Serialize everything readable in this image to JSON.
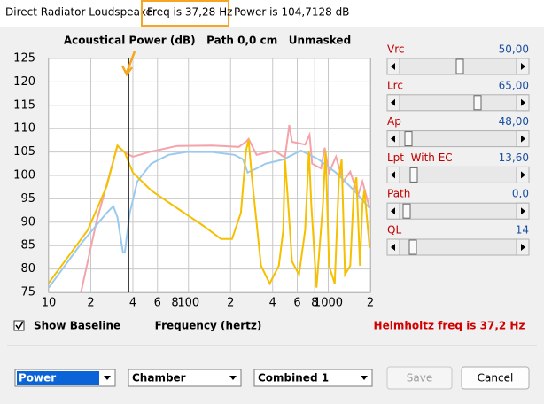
{
  "window": {
    "title": "Direct Radiator Loudspeaker",
    "status_freq": "Freq is 37,28 Hz",
    "status_power": "Power is 104,7128 dB"
  },
  "chart_data": {
    "type": "line",
    "title": "Acoustical Power (dB)   Path 0,0 cm   Unmasked",
    "x_label": "Frequency (hertz)",
    "log_x": true,
    "xlim": [
      10,
      2000
    ],
    "xticks": [
      {
        "value": 10,
        "label": "10"
      },
      {
        "value": 20,
        "label": "2"
      },
      {
        "value": 40,
        "label": "4"
      },
      {
        "value": 60,
        "label": "6"
      },
      {
        "value": 80,
        "label": "8"
      },
      {
        "value": 100,
        "label": "100"
      },
      {
        "value": 200,
        "label": "2"
      },
      {
        "value": 400,
        "label": "4"
      },
      {
        "value": 600,
        "label": "6"
      },
      {
        "value": 800,
        "label": "8"
      },
      {
        "value": 1000,
        "label": "1000"
      },
      {
        "value": 2000,
        "label": "2"
      }
    ],
    "ylim": [
      75,
      125
    ],
    "yticks": [
      75,
      80,
      85,
      90,
      95,
      100,
      105,
      110,
      115,
      120,
      125
    ],
    "grid": true,
    "cursor_x": 37.28,
    "series": [
      {
        "color": "#f4a3aa",
        "x": [
          17,
          22,
          28,
          31,
          35,
          40,
          54,
          83,
          148,
          229,
          258,
          269,
          307,
          412,
          490,
          526,
          550,
          683,
          735,
          767,
          888,
          943,
          1013,
          1136,
          1277,
          1436,
          1634,
          1756,
          1977
        ],
        "values": [
          75,
          90.2,
          101.5,
          106.3,
          104.9,
          104,
          105.1,
          106.3,
          106.4,
          106.1,
          107.2,
          107.8,
          104.4,
          105.3,
          103.8,
          110.8,
          107.2,
          106.6,
          108.7,
          102.5,
          101.5,
          105.9,
          100.6,
          104,
          98.7,
          100.8,
          95.8,
          98.7,
          93
        ]
      },
      {
        "color": "#9ccaee",
        "x": [
          10,
          17,
          26,
          29,
          31,
          34,
          35,
          38,
          43,
          54,
          72,
          96,
          148,
          213,
          246,
          265,
          307,
          355,
          476,
          638,
          853,
          1136,
          1528,
          1977
        ],
        "values": [
          76,
          85.4,
          92,
          93.4,
          91.1,
          83.5,
          83.5,
          92,
          98.7,
          102.5,
          104.4,
          105,
          105,
          104.4,
          103.4,
          100.6,
          101.5,
          102.5,
          103.4,
          105.3,
          103.4,
          100.6,
          96.8,
          93
        ]
      },
      {
        "color": "#f5c000",
        "x": [
          10,
          19,
          26,
          31,
          35,
          40,
          54,
          83,
          128,
          171,
          205,
          237,
          258,
          269,
          284,
          330,
          381,
          443,
          476,
          490,
          512,
          550,
          618,
          683,
          727,
          756,
          824,
          916,
          957,
          1013,
          1112,
          1193,
          1246,
          1318,
          1436,
          1528,
          1591,
          1686,
          1756,
          1814,
          1977
        ],
        "values": [
          77,
          88.3,
          97.7,
          106.4,
          104.9,
          100.6,
          96.8,
          93,
          89.2,
          86.4,
          86.4,
          92,
          105.3,
          107.6,
          99.6,
          80.7,
          76.9,
          80.7,
          88.3,
          103.4,
          95.8,
          81.6,
          78.8,
          88.3,
          105.3,
          93.9,
          76,
          93.9,
          105.3,
          80.7,
          76.9,
          99.6,
          103.4,
          78.8,
          80.7,
          97.7,
          99.6,
          80.7,
          93.9,
          96.8,
          84.5
        ]
      }
    ]
  },
  "sliders": [
    {
      "label": "Vrc",
      "value": "50,00"
    },
    {
      "label": "Lrc",
      "value": "65,00"
    },
    {
      "label": "Ap",
      "value": "48,00"
    },
    {
      "label": "Lpt  With EC",
      "value": "13,60"
    },
    {
      "label": "Path",
      "value": "0,0"
    },
    {
      "label": "QL",
      "value": "14"
    }
  ],
  "show_baseline": {
    "label": "Show Baseline",
    "checked": true
  },
  "helmholtz": "Helmholtz freq is 37,2 Hz",
  "dropdowns": [
    "Power",
    "Chamber",
    "Combined 1"
  ],
  "buttons": [
    "Save",
    "Cancel"
  ]
}
